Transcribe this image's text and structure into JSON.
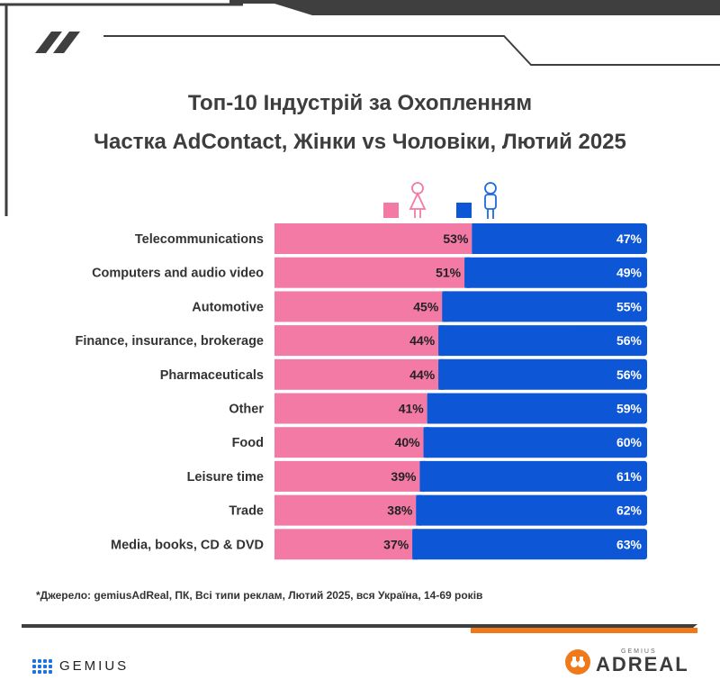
{
  "title_line1": "Топ-10 Індустрій за Охопленням",
  "title_line2": "Частка AdContact, Жінки vs Чоловіки, Лютий 2025",
  "footnote": "*Джерело: gemiusAdReal, ПК, Всі типи реклам, Лютий 2025, вся Україна, 14-69 років",
  "legend": {
    "female_icon": "female-icon",
    "male_icon": "male-icon"
  },
  "colors": {
    "female": "#f47aa6",
    "male": "#0d56d6",
    "accent": "#f07a1a",
    "dark": "#3d3d3d"
  },
  "logos": {
    "gemius": "GEMIUS",
    "adreal_small": "GEMIUS",
    "adreal": "ADREAL"
  },
  "chart_data": {
    "type": "bar",
    "orientation": "horizontal",
    "stacked": "100%",
    "categories": [
      "Telecommunications",
      "Computers and audio video",
      "Automotive",
      "Finance, insurance, brokerage",
      "Pharmaceuticals",
      "Other",
      "Food",
      "Leisure time",
      "Trade",
      "Media, books, CD & DVD"
    ],
    "series": [
      {
        "values": [
          53,
          51,
          45,
          44,
          44,
          41,
          40,
          39,
          38,
          37
        ],
        "color": "#f47aa6"
      },
      {
        "values": [
          47,
          49,
          55,
          56,
          56,
          59,
          60,
          61,
          62,
          63
        ],
        "color": "#0d56d6"
      }
    ],
    "value_suffix": "%",
    "xlim": [
      0,
      100
    ],
    "legend": "top-center"
  }
}
